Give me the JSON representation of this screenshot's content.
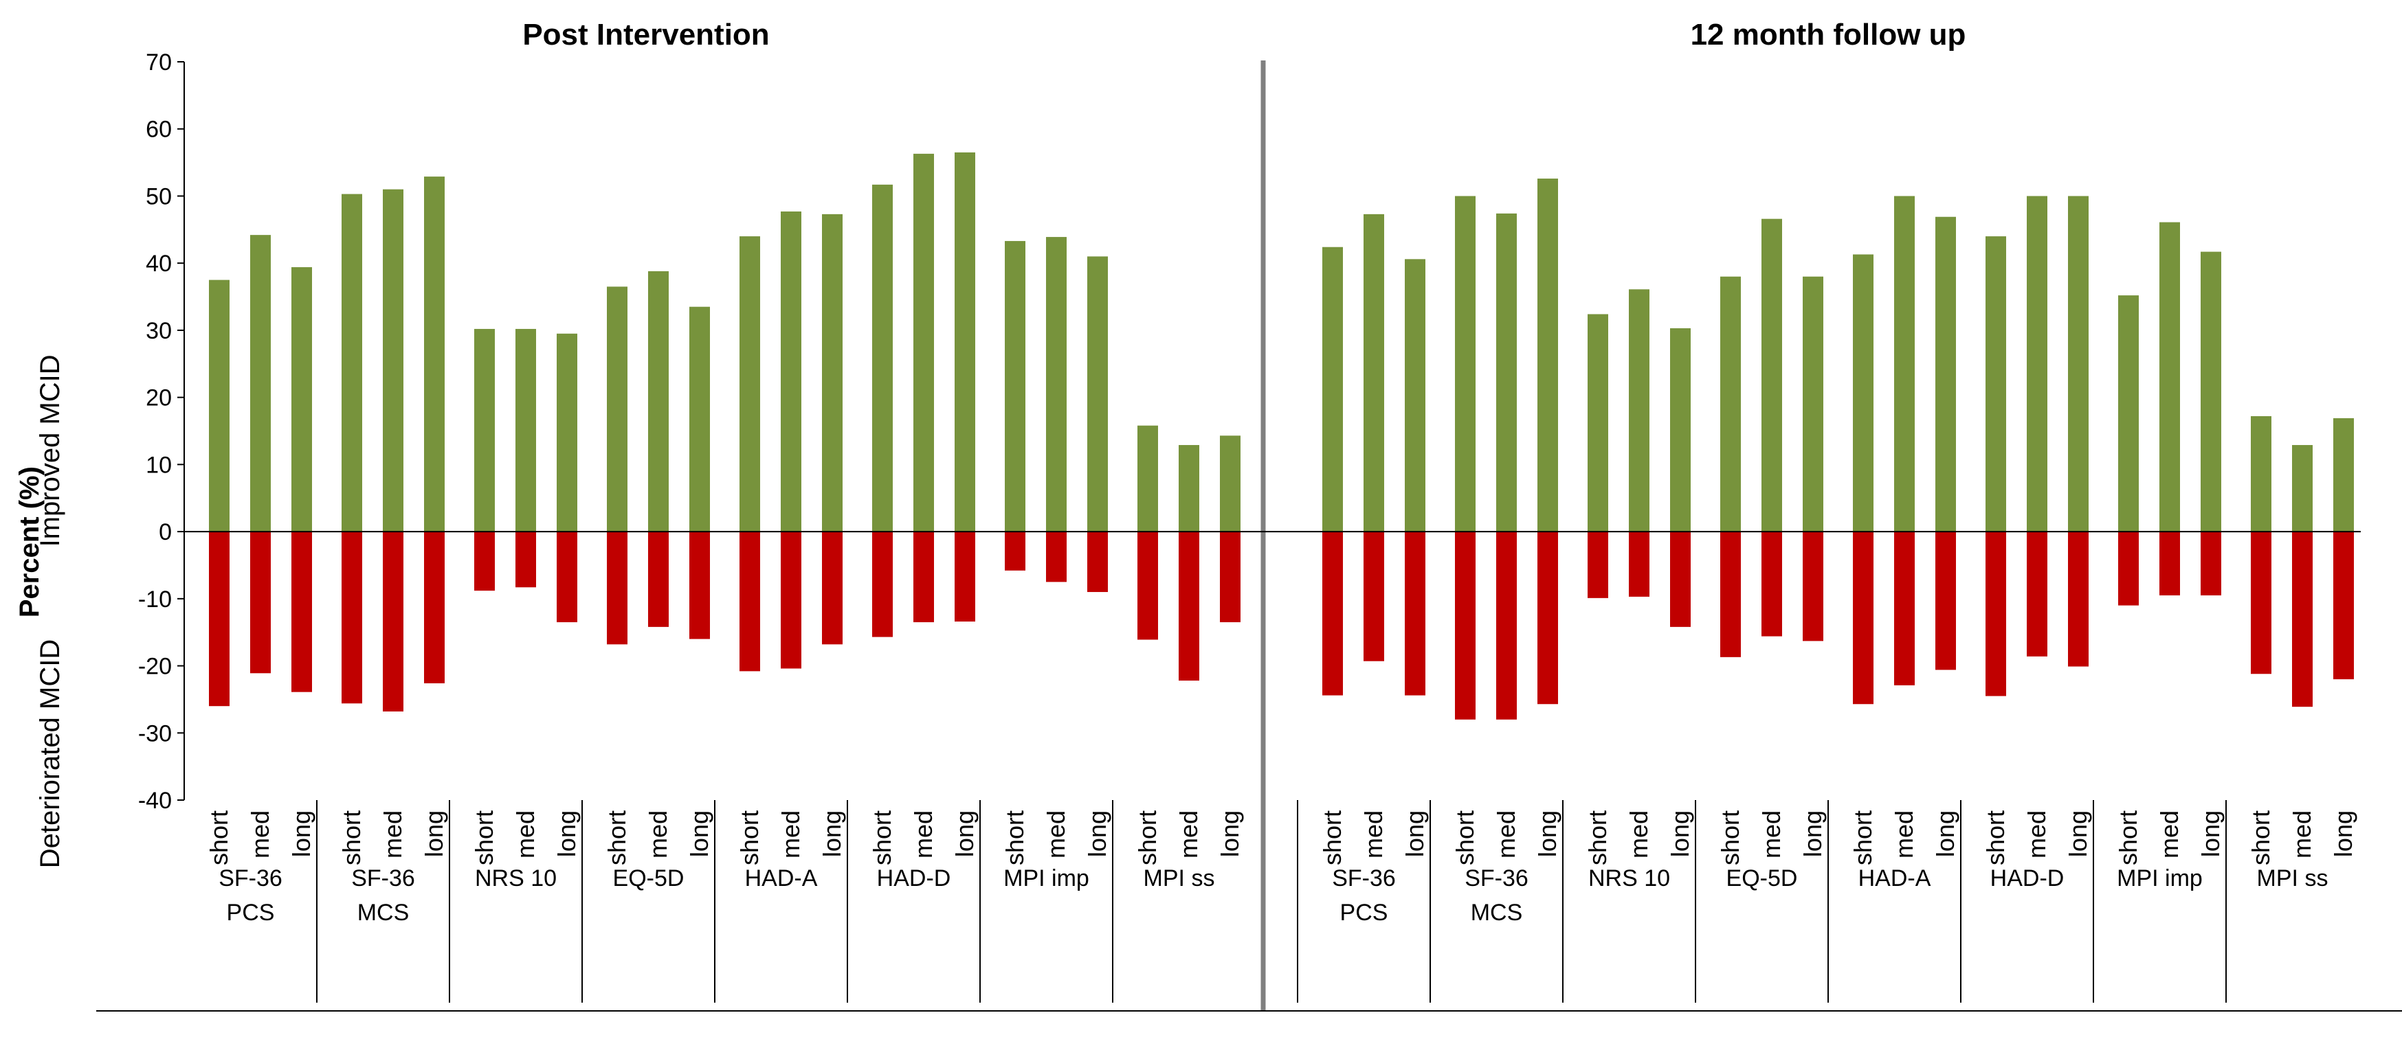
{
  "chart_data": {
    "type": "bar",
    "title": "",
    "ylabel": "Percent (%)",
    "ylabel_upper": "Improved MCID",
    "ylabel_lower": "Deteriorated MCID",
    "ylim": [
      -40,
      70
    ],
    "yticks": [
      70,
      60,
      50,
      40,
      30,
      20,
      10,
      0,
      -10,
      -20,
      -30,
      -40
    ],
    "legend": "none",
    "grid": false,
    "colors": {
      "improved": "#77933c",
      "deteriorated": "#c00000"
    },
    "conditions": [
      "short",
      "med",
      "long"
    ],
    "panels": [
      {
        "title": "Post Intervention",
        "measures": [
          {
            "line1": "SF-36",
            "line2": "PCS",
            "improved": [
              37.5,
              44.2,
              39.4
            ],
            "deteriorated": [
              -26.0,
              -21.1,
              -23.9
            ]
          },
          {
            "line1": "SF-36",
            "line2": "MCS",
            "improved": [
              50.3,
              51.0,
              52.9
            ],
            "deteriorated": [
              -25.6,
              -26.8,
              -22.6
            ]
          },
          {
            "line1": "NRS 10",
            "line2": "",
            "improved": [
              30.2,
              30.2,
              29.5
            ],
            "deteriorated": [
              -8.8,
              -8.3,
              -13.5
            ]
          },
          {
            "line1": "EQ-5D",
            "line2": "",
            "improved": [
              36.5,
              38.8,
              33.5
            ],
            "deteriorated": [
              -16.8,
              -14.2,
              -16.0
            ]
          },
          {
            "line1": "HAD-A",
            "line2": "",
            "improved": [
              44.0,
              47.7,
              47.3
            ],
            "deteriorated": [
              -20.8,
              -20.4,
              -16.8
            ]
          },
          {
            "line1": "HAD-D",
            "line2": "",
            "improved": [
              51.7,
              56.3,
              56.5
            ],
            "deteriorated": [
              -15.7,
              -13.5,
              -13.4
            ]
          },
          {
            "line1": "MPI imp",
            "line2": "",
            "improved": [
              43.3,
              43.9,
              41.0
            ],
            "deteriorated": [
              -5.8,
              -7.5,
              -9.0
            ]
          },
          {
            "line1": "MPI ss",
            "line2": "",
            "improved": [
              15.8,
              12.9,
              14.3
            ],
            "deteriorated": [
              -16.1,
              -22.2,
              -13.5
            ]
          }
        ]
      },
      {
        "title": "12 month follow up",
        "measures": [
          {
            "line1": "SF-36",
            "line2": "PCS",
            "improved": [
              42.4,
              47.3,
              40.6
            ],
            "deteriorated": [
              -24.4,
              -19.3,
              -24.4
            ]
          },
          {
            "line1": "SF-36",
            "line2": "MCS",
            "improved": [
              50.0,
              47.4,
              52.6
            ],
            "deteriorated": [
              -28.0,
              -28.0,
              -25.7
            ]
          },
          {
            "line1": "NRS 10",
            "line2": "",
            "improved": [
              32.4,
              36.1,
              30.3
            ],
            "deteriorated": [
              -9.9,
              -9.7,
              -14.2
            ]
          },
          {
            "line1": "EQ-5D",
            "line2": "",
            "improved": [
              38.0,
              46.6,
              38.0
            ],
            "deteriorated": [
              -18.7,
              -15.6,
              -16.3
            ]
          },
          {
            "line1": "HAD-A",
            "line2": "",
            "improved": [
              41.3,
              50.0,
              46.9
            ],
            "deteriorated": [
              -25.7,
              -22.9,
              -20.6
            ]
          },
          {
            "line1": "HAD-D",
            "line2": "",
            "improved": [
              44.0,
              50.0,
              50.0
            ],
            "deteriorated": [
              -24.5,
              -18.6,
              -20.1
            ]
          },
          {
            "line1": "MPI imp",
            "line2": "",
            "improved": [
              35.2,
              46.1,
              41.7
            ],
            "deteriorated": [
              -11.0,
              -9.5,
              -9.5
            ]
          },
          {
            "line1": "MPI ss",
            "line2": "",
            "improved": [
              17.2,
              12.9,
              16.9
            ],
            "deteriorated": [
              -21.2,
              -26.1,
              -22.0
            ]
          }
        ]
      }
    ]
  }
}
